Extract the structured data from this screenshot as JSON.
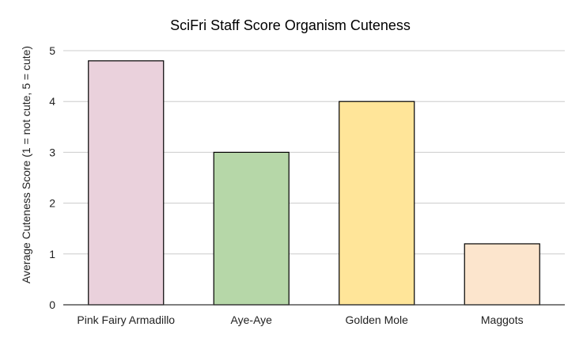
{
  "chart_data": {
    "type": "bar",
    "title": "SciFri Staff Score Organism Cuteness",
    "ylabel": "Average Cuteness  Score    (1 = not cute, 5 = cute)",
    "xlabel": "",
    "categories": [
      "Pink Fairy Armadillo",
      "Aye-Aye",
      "Golden Mole",
      "Maggots"
    ],
    "values": [
      4.8,
      3.0,
      4.0,
      1.2
    ],
    "colors": [
      "#ead1dc",
      "#b6d7a8",
      "#ffe599",
      "#fce5cd"
    ],
    "ylim": [
      0,
      5
    ],
    "yticks": [
      "0",
      "1",
      "2",
      "3",
      "4",
      "5"
    ],
    "grid": true,
    "legend": "none"
  }
}
